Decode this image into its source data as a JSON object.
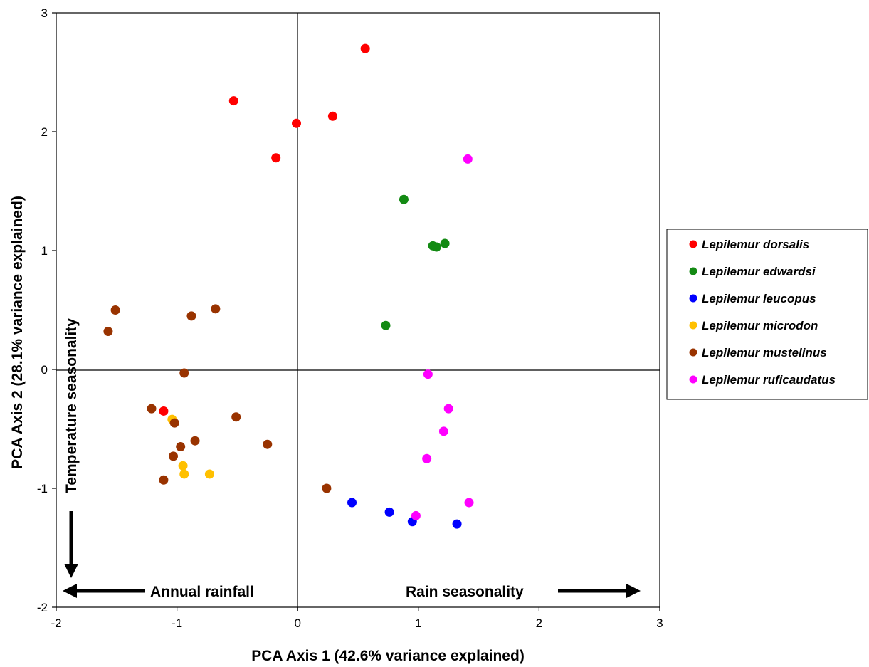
{
  "chart_data": {
    "type": "scatter",
    "title": "",
    "xlabel": "PCA Axis 1 (42.6% variance explained)",
    "ylabel": "PCA Axis 2 (28.1% variance explained)",
    "xlim": [
      -2,
      3
    ],
    "ylim": [
      -2,
      3
    ],
    "xticks": [
      "-2",
      "-1",
      "0",
      "1",
      "2",
      "3"
    ],
    "yticks": [
      "-2",
      "-1",
      "0",
      "1",
      "2",
      "3"
    ],
    "grid": false,
    "legend_position": "right",
    "annotations": {
      "temperature": "Temperature seasonality",
      "rainfall": "Annual rainfall",
      "rain_seasonality": "Rain seasonality"
    },
    "series": [
      {
        "name": "Lepilemur dorsalis",
        "color": "#ff0000",
        "points": [
          [
            0.56,
            2.7
          ],
          [
            -0.53,
            2.26
          ],
          [
            -0.01,
            2.07
          ],
          [
            0.29,
            2.13
          ],
          [
            -0.18,
            1.78
          ],
          [
            -1.11,
            -0.35
          ]
        ]
      },
      {
        "name": "Lepilemur edwardsi",
        "color": "#138a13",
        "points": [
          [
            0.88,
            1.43
          ],
          [
            1.12,
            1.04
          ],
          [
            1.15,
            1.03
          ],
          [
            1.22,
            1.06
          ],
          [
            0.73,
            0.37
          ]
        ]
      },
      {
        "name": "Lepilemur leucopus",
        "color": "#0000ff",
        "points": [
          [
            0.45,
            -1.12
          ],
          [
            0.76,
            -1.2
          ],
          [
            0.95,
            -1.28
          ],
          [
            1.32,
            -1.3
          ]
        ]
      },
      {
        "name": "Lepilemur microdon",
        "color": "#ffc000",
        "points": [
          [
            -1.04,
            -0.42
          ],
          [
            -0.95,
            -0.81
          ],
          [
            -0.94,
            -0.88
          ],
          [
            -0.73,
            -0.88
          ]
        ]
      },
      {
        "name": "Lepilemur mustelinus",
        "color": "#993300",
        "points": [
          [
            -1.51,
            0.5
          ],
          [
            -1.57,
            0.32
          ],
          [
            -0.88,
            0.45
          ],
          [
            -0.68,
            0.51
          ],
          [
            -0.94,
            -0.03
          ],
          [
            -1.21,
            -0.33
          ],
          [
            -1.02,
            -0.45
          ],
          [
            -0.51,
            -0.4
          ],
          [
            -0.85,
            -0.6
          ],
          [
            -0.97,
            -0.65
          ],
          [
            -1.03,
            -0.73
          ],
          [
            -1.11,
            -0.93
          ],
          [
            -0.25,
            -0.63
          ],
          [
            0.24,
            -1.0
          ]
        ]
      },
      {
        "name": "Lepilemur ruficaudatus",
        "color": "#ff00ff",
        "points": [
          [
            1.41,
            1.77
          ],
          [
            1.08,
            -0.04
          ],
          [
            1.25,
            -0.33
          ],
          [
            1.21,
            -0.52
          ],
          [
            1.07,
            -0.75
          ],
          [
            0.98,
            -1.23
          ],
          [
            1.42,
            -1.12
          ]
        ]
      }
    ]
  }
}
